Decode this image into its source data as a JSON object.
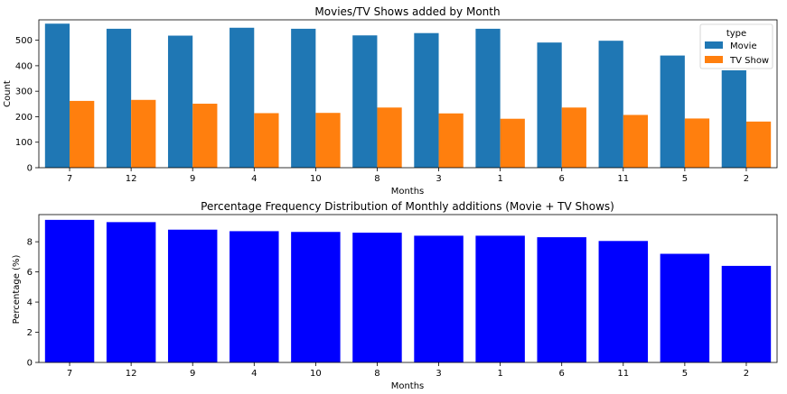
{
  "chart_data": [
    {
      "type": "bar",
      "title": "Movies/TV Shows added by Month",
      "xlabel": "Months",
      "ylabel": "Count",
      "categories": [
        "7",
        "12",
        "9",
        "4",
        "10",
        "8",
        "3",
        "1",
        "6",
        "11",
        "5",
        "2"
      ],
      "ylim": [
        0,
        580
      ],
      "yticks": [
        0,
        100,
        200,
        300,
        400,
        500
      ],
      "legend": {
        "title": "type",
        "placement": "top-right"
      },
      "grid": false,
      "series": [
        {
          "name": "Movie",
          "color": "#1f77b4",
          "values": [
            565,
            545,
            518,
            549,
            545,
            519,
            528,
            545,
            491,
            498,
            440,
            382
          ]
        },
        {
          "name": "TV Show",
          "color": "#ff7f0e",
          "values": [
            262,
            266,
            251,
            214,
            215,
            236,
            213,
            192,
            236,
            207,
            193,
            181
          ]
        }
      ]
    },
    {
      "type": "bar",
      "title": "Percentage Frequency Distribution of Monthly additions (Movie + TV Shows)",
      "xlabel": "Months",
      "ylabel": "Percentage (%)",
      "categories": [
        "7",
        "12",
        "9",
        "4",
        "10",
        "8",
        "3",
        "1",
        "6",
        "11",
        "5",
        "2"
      ],
      "ylim": [
        0,
        9.8
      ],
      "yticks": [
        0,
        2,
        4,
        6,
        8
      ],
      "grid": false,
      "series": [
        {
          "name": "",
          "color": "#0000ff",
          "values": [
            9.45,
            9.3,
            8.8,
            8.7,
            8.65,
            8.6,
            8.4,
            8.4,
            8.3,
            8.05,
            7.2,
            6.4
          ]
        }
      ]
    }
  ]
}
